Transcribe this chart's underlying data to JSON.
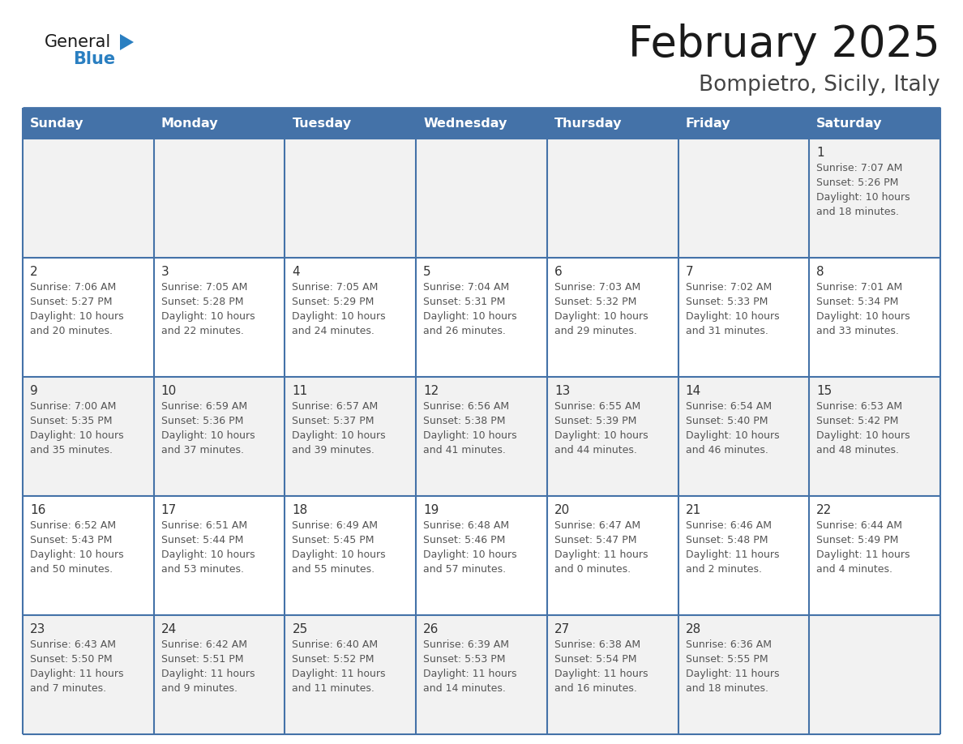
{
  "title": "February 2025",
  "subtitle": "Bompietro, Sicily, Italy",
  "days_of_week": [
    "Sunday",
    "Monday",
    "Tuesday",
    "Wednesday",
    "Thursday",
    "Friday",
    "Saturday"
  ],
  "header_bg": "#4472A8",
  "header_text_color": "#FFFFFF",
  "cell_bg_even": "#F2F2F2",
  "cell_bg_odd": "#FFFFFF",
  "border_color": "#4472A8",
  "day_number_color": "#333333",
  "cell_text_color": "#555555",
  "title_color": "#1a1a1a",
  "subtitle_color": "#444444",
  "logo_general_color": "#1a1a1a",
  "logo_blue_color": "#2a7fc1",
  "logo_triangle_color": "#2a7fc1",
  "calendar_data": [
    [
      null,
      null,
      null,
      null,
      null,
      null,
      {
        "day": 1,
        "sunrise": "7:07 AM",
        "sunset": "5:26 PM",
        "daylight": "10 hours and 18 minutes."
      }
    ],
    [
      {
        "day": 2,
        "sunrise": "7:06 AM",
        "sunset": "5:27 PM",
        "daylight": "10 hours and 20 minutes."
      },
      {
        "day": 3,
        "sunrise": "7:05 AM",
        "sunset": "5:28 PM",
        "daylight": "10 hours and 22 minutes."
      },
      {
        "day": 4,
        "sunrise": "7:05 AM",
        "sunset": "5:29 PM",
        "daylight": "10 hours and 24 minutes."
      },
      {
        "day": 5,
        "sunrise": "7:04 AM",
        "sunset": "5:31 PM",
        "daylight": "10 hours and 26 minutes."
      },
      {
        "day": 6,
        "sunrise": "7:03 AM",
        "sunset": "5:32 PM",
        "daylight": "10 hours and 29 minutes."
      },
      {
        "day": 7,
        "sunrise": "7:02 AM",
        "sunset": "5:33 PM",
        "daylight": "10 hours and 31 minutes."
      },
      {
        "day": 8,
        "sunrise": "7:01 AM",
        "sunset": "5:34 PM",
        "daylight": "10 hours and 33 minutes."
      }
    ],
    [
      {
        "day": 9,
        "sunrise": "7:00 AM",
        "sunset": "5:35 PM",
        "daylight": "10 hours and 35 minutes."
      },
      {
        "day": 10,
        "sunrise": "6:59 AM",
        "sunset": "5:36 PM",
        "daylight": "10 hours and 37 minutes."
      },
      {
        "day": 11,
        "sunrise": "6:57 AM",
        "sunset": "5:37 PM",
        "daylight": "10 hours and 39 minutes."
      },
      {
        "day": 12,
        "sunrise": "6:56 AM",
        "sunset": "5:38 PM",
        "daylight": "10 hours and 41 minutes."
      },
      {
        "day": 13,
        "sunrise": "6:55 AM",
        "sunset": "5:39 PM",
        "daylight": "10 hours and 44 minutes."
      },
      {
        "day": 14,
        "sunrise": "6:54 AM",
        "sunset": "5:40 PM",
        "daylight": "10 hours and 46 minutes."
      },
      {
        "day": 15,
        "sunrise": "6:53 AM",
        "sunset": "5:42 PM",
        "daylight": "10 hours and 48 minutes."
      }
    ],
    [
      {
        "day": 16,
        "sunrise": "6:52 AM",
        "sunset": "5:43 PM",
        "daylight": "10 hours and 50 minutes."
      },
      {
        "day": 17,
        "sunrise": "6:51 AM",
        "sunset": "5:44 PM",
        "daylight": "10 hours and 53 minutes."
      },
      {
        "day": 18,
        "sunrise": "6:49 AM",
        "sunset": "5:45 PM",
        "daylight": "10 hours and 55 minutes."
      },
      {
        "day": 19,
        "sunrise": "6:48 AM",
        "sunset": "5:46 PM",
        "daylight": "10 hours and 57 minutes."
      },
      {
        "day": 20,
        "sunrise": "6:47 AM",
        "sunset": "5:47 PM",
        "daylight": "11 hours and 0 minutes."
      },
      {
        "day": 21,
        "sunrise": "6:46 AM",
        "sunset": "5:48 PM",
        "daylight": "11 hours and 2 minutes."
      },
      {
        "day": 22,
        "sunrise": "6:44 AM",
        "sunset": "5:49 PM",
        "daylight": "11 hours and 4 minutes."
      }
    ],
    [
      {
        "day": 23,
        "sunrise": "6:43 AM",
        "sunset": "5:50 PM",
        "daylight": "11 hours and 7 minutes."
      },
      {
        "day": 24,
        "sunrise": "6:42 AM",
        "sunset": "5:51 PM",
        "daylight": "11 hours and 9 minutes."
      },
      {
        "day": 25,
        "sunrise": "6:40 AM",
        "sunset": "5:52 PM",
        "daylight": "11 hours and 11 minutes."
      },
      {
        "day": 26,
        "sunrise": "6:39 AM",
        "sunset": "5:53 PM",
        "daylight": "11 hours and 14 minutes."
      },
      {
        "day": 27,
        "sunrise": "6:38 AM",
        "sunset": "5:54 PM",
        "daylight": "11 hours and 16 minutes."
      },
      {
        "day": 28,
        "sunrise": "6:36 AM",
        "sunset": "5:55 PM",
        "daylight": "11 hours and 18 minutes."
      },
      null
    ]
  ]
}
